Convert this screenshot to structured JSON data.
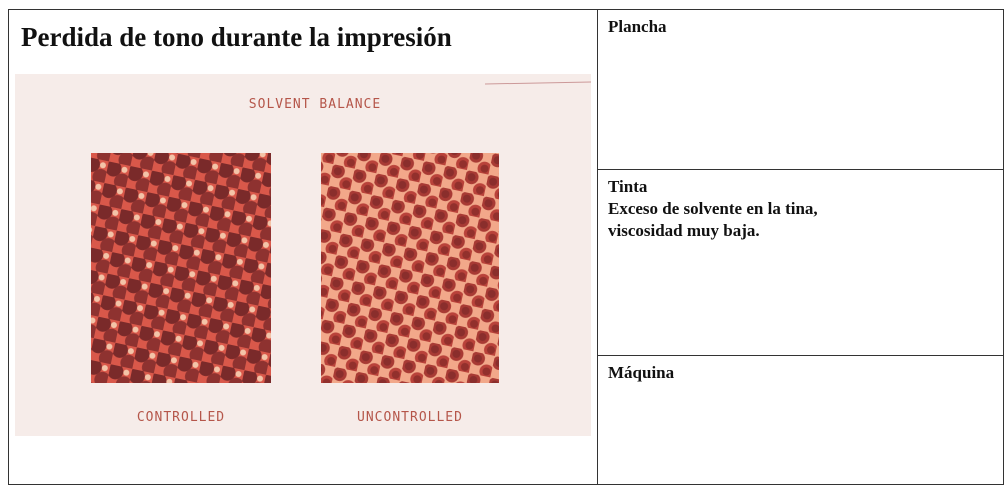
{
  "title": "Perdida de tono durante la impresión",
  "image": {
    "heading": "SOLVENT BALANCE",
    "captions": [
      "CONTROLLED",
      "UNCONTROLLED"
    ]
  },
  "cells": [
    {
      "label": "Plancha",
      "lines": []
    },
    {
      "label": "Tinta",
      "lines": [
        "Exceso de solvente en la tina,",
        "viscosidad muy baja."
      ]
    },
    {
      "label": "Máquina",
      "lines": []
    }
  ]
}
